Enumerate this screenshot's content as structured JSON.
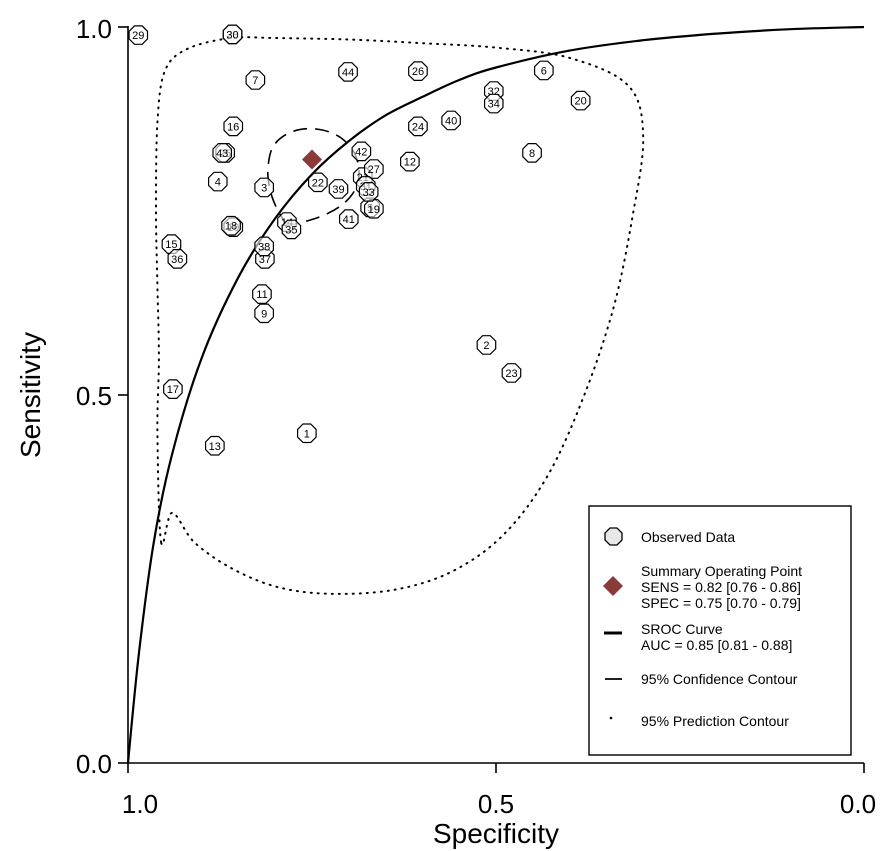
{
  "chart_data": {
    "type": "scatter",
    "xlabel": "Specificity",
    "ylabel": "Sensitivity",
    "x_reversed": true,
    "xlim": [
      1.0,
      0.0
    ],
    "ylim": [
      0.0,
      1.0
    ],
    "x_ticks": [
      "1.0",
      "0.5",
      "0.0"
    ],
    "y_ticks": [
      "0.0",
      "0.5",
      "1.0"
    ],
    "grid": false,
    "legend_position": "bottom-right",
    "observed": [
      {
        "id": "1",
        "spec": 0.757,
        "sens": 0.448
      },
      {
        "id": "2",
        "spec": 0.513,
        "sens": 0.568
      },
      {
        "id": "3",
        "spec": 0.815,
        "sens": 0.782
      },
      {
        "id": "4",
        "spec": 0.878,
        "sens": 0.79
      },
      {
        "id": "5",
        "spec": 0.671,
        "sens": 0.755
      },
      {
        "id": "6",
        "spec": 0.435,
        "sens": 0.941
      },
      {
        "id": "7",
        "spec": 0.827,
        "sens": 0.928
      },
      {
        "id": "8",
        "spec": 0.451,
        "sens": 0.829
      },
      {
        "id": "9",
        "spec": 0.815,
        "sens": 0.611
      },
      {
        "id": "10",
        "spec": 0.857,
        "sens": 0.728
      },
      {
        "id": "11",
        "spec": 0.818,
        "sens": 0.637
      },
      {
        "id": "12",
        "spec": 0.617,
        "sens": 0.817
      },
      {
        "id": "13",
        "spec": 0.882,
        "sens": 0.431
      },
      {
        "id": "14",
        "spec": 0.784,
        "sens": 0.735
      },
      {
        "id": "15",
        "spec": 0.941,
        "sens": 0.705
      },
      {
        "id": "16",
        "spec": 0.857,
        "sens": 0.865
      },
      {
        "id": "17",
        "spec": 0.939,
        "sens": 0.508
      },
      {
        "id": "18",
        "spec": 0.86,
        "sens": 0.73
      },
      {
        "id": "19",
        "spec": 0.666,
        "sens": 0.753
      },
      {
        "id": "20",
        "spec": 0.385,
        "sens": 0.9
      },
      {
        "id": "21",
        "spec": 0.681,
        "sens": 0.796
      },
      {
        "id": "22",
        "spec": 0.742,
        "sens": 0.789
      },
      {
        "id": "23",
        "spec": 0.479,
        "sens": 0.53
      },
      {
        "id": "24",
        "spec": 0.606,
        "sens": 0.865
      },
      {
        "id": "25",
        "spec": 0.868,
        "sens": 0.829
      },
      {
        "id": "26",
        "spec": 0.606,
        "sens": 0.94
      },
      {
        "id": "27",
        "spec": 0.666,
        "sens": 0.807
      },
      {
        "id": "28",
        "spec": 0.858,
        "sens": 0.99
      },
      {
        "id": "29",
        "spec": 0.986,
        "sens": 0.989
      },
      {
        "id": "30",
        "spec": 0.858,
        "sens": 0.99
      },
      {
        "id": "31",
        "spec": 0.677,
        "sens": 0.784
      },
      {
        "id": "32",
        "spec": 0.503,
        "sens": 0.913
      },
      {
        "id": "33",
        "spec": 0.673,
        "sens": 0.776
      },
      {
        "id": "34",
        "spec": 0.503,
        "sens": 0.896
      },
      {
        "id": "35",
        "spec": 0.778,
        "sens": 0.725
      },
      {
        "id": "36",
        "spec": 0.933,
        "sens": 0.685
      },
      {
        "id": "37",
        "spec": 0.814,
        "sens": 0.685
      },
      {
        "id": "38",
        "spec": 0.815,
        "sens": 0.702
      },
      {
        "id": "39",
        "spec": 0.714,
        "sens": 0.78
      },
      {
        "id": "40",
        "spec": 0.561,
        "sens": 0.873
      },
      {
        "id": "41",
        "spec": 0.7,
        "sens": 0.739
      },
      {
        "id": "42",
        "spec": 0.683,
        "sens": 0.831
      },
      {
        "id": "43",
        "spec": 0.872,
        "sens": 0.829
      },
      {
        "id": "44",
        "spec": 0.701,
        "sens": 0.939
      }
    ],
    "summary_point": {
      "spec": 0.75,
      "sens": 0.82
    },
    "sroc_curve": [
      {
        "spec": 1.0,
        "sens": 0.0
      },
      {
        "spec": 0.985,
        "sens": 0.15
      },
      {
        "spec": 0.965,
        "sens": 0.3
      },
      {
        "spec": 0.94,
        "sens": 0.42
      },
      {
        "spec": 0.9,
        "sens": 0.55
      },
      {
        "spec": 0.85,
        "sens": 0.66
      },
      {
        "spec": 0.8,
        "sens": 0.74
      },
      {
        "spec": 0.75,
        "sens": 0.8
      },
      {
        "spec": 0.7,
        "sens": 0.845
      },
      {
        "spec": 0.65,
        "sens": 0.88
      },
      {
        "spec": 0.6,
        "sens": 0.905
      },
      {
        "spec": 0.55,
        "sens": 0.928
      },
      {
        "spec": 0.5,
        "sens": 0.945
      },
      {
        "spec": 0.4,
        "sens": 0.968
      },
      {
        "spec": 0.3,
        "sens": 0.982
      },
      {
        "spec": 0.2,
        "sens": 0.991
      },
      {
        "spec": 0.1,
        "sens": 0.997
      },
      {
        "spec": 0.0,
        "sens": 1.0
      }
    ],
    "confidence_contour": [
      {
        "spec": 0.784,
        "sens": 0.73
      },
      {
        "spec": 0.797,
        "sens": 0.752
      },
      {
        "spec": 0.806,
        "sens": 0.775
      },
      {
        "spec": 0.81,
        "sens": 0.803
      },
      {
        "spec": 0.805,
        "sens": 0.833
      },
      {
        "spec": 0.79,
        "sens": 0.851
      },
      {
        "spec": 0.765,
        "sens": 0.861
      },
      {
        "spec": 0.736,
        "sens": 0.86
      },
      {
        "spec": 0.71,
        "sens": 0.849
      },
      {
        "spec": 0.692,
        "sens": 0.828
      },
      {
        "spec": 0.686,
        "sens": 0.803
      },
      {
        "spec": 0.691,
        "sens": 0.78
      },
      {
        "spec": 0.706,
        "sens": 0.761
      },
      {
        "spec": 0.728,
        "sens": 0.747
      },
      {
        "spec": 0.755,
        "sens": 0.737
      },
      {
        "spec": 0.784,
        "sens": 0.73
      }
    ],
    "prediction_contour": [
      {
        "spec": 0.955,
        "sens": 0.3
      },
      {
        "spec": 0.96,
        "sens": 0.45
      },
      {
        "spec": 0.958,
        "sens": 0.55
      },
      {
        "spec": 0.96,
        "sens": 0.65
      },
      {
        "spec": 0.962,
        "sens": 0.75
      },
      {
        "spec": 0.96,
        "sens": 0.87
      },
      {
        "spec": 0.95,
        "sens": 0.94
      },
      {
        "spec": 0.92,
        "sens": 0.97
      },
      {
        "spec": 0.86,
        "sens": 0.985
      },
      {
        "spec": 0.8,
        "sens": 0.985
      },
      {
        "spec": 0.7,
        "sens": 0.983
      },
      {
        "spec": 0.6,
        "sens": 0.978
      },
      {
        "spec": 0.5,
        "sens": 0.972
      },
      {
        "spec": 0.4,
        "sens": 0.958
      },
      {
        "spec": 0.32,
        "sens": 0.92
      },
      {
        "spec": 0.3,
        "sens": 0.85
      },
      {
        "spec": 0.315,
        "sens": 0.74
      },
      {
        "spec": 0.34,
        "sens": 0.62
      },
      {
        "spec": 0.38,
        "sens": 0.5
      },
      {
        "spec": 0.43,
        "sens": 0.39
      },
      {
        "spec": 0.49,
        "sens": 0.31
      },
      {
        "spec": 0.56,
        "sens": 0.26
      },
      {
        "spec": 0.64,
        "sens": 0.235
      },
      {
        "spec": 0.73,
        "sens": 0.23
      },
      {
        "spec": 0.8,
        "sens": 0.24
      },
      {
        "spec": 0.86,
        "sens": 0.265
      },
      {
        "spec": 0.91,
        "sens": 0.3
      },
      {
        "spec": 0.94,
        "sens": 0.34
      }
    ],
    "legend": {
      "observed": "Observed Data",
      "summary_title": "Summary Operating Point",
      "summary_sens": "SENS = 0.82 [0.76 - 0.86]",
      "summary_spec": "SPEC = 0.75 [0.70 - 0.79]",
      "sroc_title": "SROC Curve",
      "sroc_auc": "AUC = 0.85 [0.81 - 0.88]",
      "confidence": "95% Confidence Contour",
      "prediction": "95% Prediction Contour"
    },
    "colors": {
      "summary_marker": "#8b3a3a",
      "axis": "#000000",
      "marker_fill": "#ffffff",
      "legend_marker_fill": "#e8e8e8"
    }
  }
}
